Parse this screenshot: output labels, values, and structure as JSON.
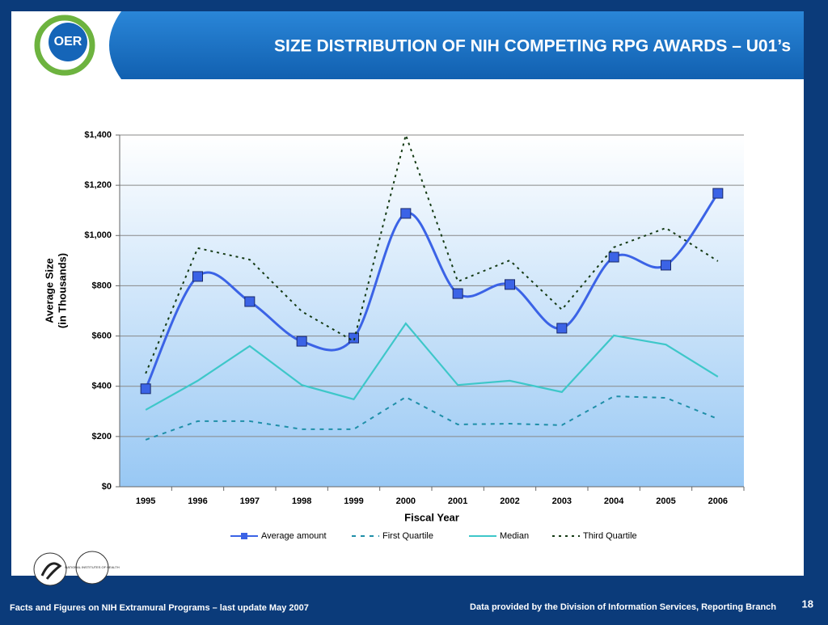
{
  "header": {
    "logo": "OER",
    "title": "SIZE DISTRIBUTION OF NIH COMPETING RPG AWARDS – U01’s"
  },
  "chart_data": {
    "type": "line",
    "xlabel": "Fiscal Year",
    "ylabel": [
      "Average Size",
      "(in Thousands)"
    ],
    "categories": [
      "1995",
      "1996",
      "1997",
      "1998",
      "1999",
      "2000",
      "2001",
      "2002",
      "2003",
      "2004",
      "2005",
      "2006"
    ],
    "series": [
      {
        "name": "Average amount",
        "color": "#3b63e6",
        "style": "solid",
        "marker": "square",
        "smooth": true,
        "values": [
          390,
          837,
          737,
          579,
          592,
          1088,
          769,
          805,
          631,
          914,
          882,
          1168
        ]
      },
      {
        "name": "First Quartile",
        "color": "#1f8fa8",
        "style": "dashed",
        "values": [
          187,
          261,
          261,
          229,
          229,
          357,
          248,
          251,
          245,
          360,
          354,
          270
        ]
      },
      {
        "name": "Median",
        "color": "#3ec7c9",
        "style": "solid",
        "values": [
          306,
          422,
          560,
          405,
          348,
          650,
          405,
          422,
          377,
          602,
          566,
          438
        ]
      },
      {
        "name": "Third Quartile",
        "color": "#143a14",
        "style": "dotted",
        "values": [
          451,
          950,
          904,
          698,
          579,
          1400,
          817,
          901,
          705,
          953,
          1030,
          898
        ]
      }
    ],
    "ylim": [
      0,
      1400
    ],
    "yticks": [
      {
        "value": 0,
        "label": "$0"
      },
      {
        "value": 200,
        "label": "$200"
      },
      {
        "value": 400,
        "label": "$400"
      },
      {
        "value": 600,
        "label": "$600"
      },
      {
        "value": 800,
        "label": "$800"
      },
      {
        "value": 1000,
        "label": "$1,000"
      },
      {
        "value": 1200,
        "label": "$1,200"
      },
      {
        "value": 1400,
        "label": "$1,400"
      }
    ],
    "grid": true,
    "legend": "bottom"
  },
  "logos": {
    "nih": "NATIONAL INSTITUTES OF HEALTH"
  },
  "footer": {
    "left": "Facts and Figures on NIH Extramural Programs – last update May 2007",
    "source": "Data provided by the Division of Information Services, Reporting Branch",
    "page": "18"
  }
}
